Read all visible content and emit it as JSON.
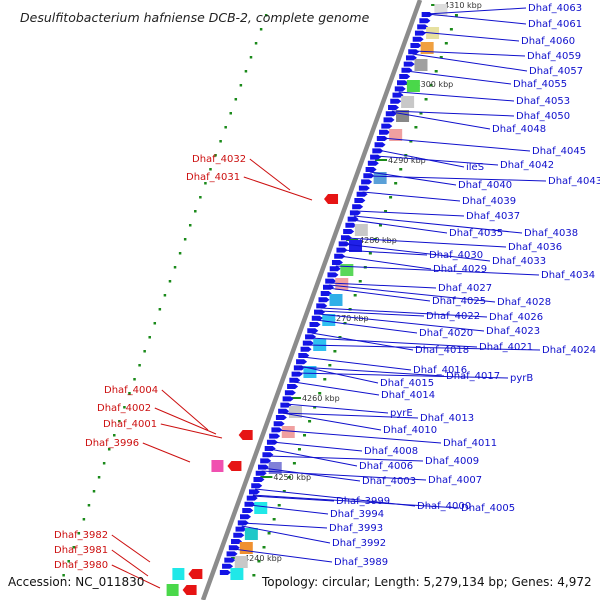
{
  "title": "Desulfitobacterium hafniense DCB-2, complete genome",
  "footer": {
    "accession": "Accession: NC_011830",
    "summary": "Topology: circular; Length: 5,279,134 bp; Genes: 4,972"
  },
  "colors": {
    "forward_label": "#1010cc",
    "reverse_label": "#cc1010",
    "backbone": "#8c8c8c",
    "tick": "#1a8a1a",
    "forward_gene": "#1414e6",
    "reverse_gene": "#e61414"
  },
  "kbp_markers": [
    "4310 kbp",
    "4300 kbp",
    "4290 kbp",
    "4280 kbp",
    "4270 kbp",
    "4260 kbp",
    "4250 kbp",
    "4240 kbp"
  ],
  "forward_genes": [
    "Dhaf_4063",
    "Dhaf_4061",
    "Dhaf_4060",
    "Dhaf_4059",
    "Dhaf_4057",
    "Dhaf_4055",
    "Dhaf_4053",
    "Dhaf_4050",
    "Dhaf_4048",
    "Dhaf_4045",
    "Dhaf_4042",
    "Dhaf_4043",
    "ileS",
    "Dhaf_4040",
    "Dhaf_4039",
    "Dhaf_4037",
    "Dhaf_4038",
    "Dhaf_4035",
    "Dhaf_4036",
    "Dhaf_4030",
    "Dhaf_4033",
    "Dhaf_4029",
    "Dhaf_4034",
    "Dhaf_4027",
    "Dhaf_4028",
    "Dhaf_4025",
    "Dhaf_4026",
    "Dhaf_4022",
    "Dhaf_4023",
    "Dhaf_4020",
    "Dhaf_4021",
    "Dhaf_4024",
    "Dhaf_4018",
    "Dhaf_4016",
    "Dhaf_4017",
    "pyrB",
    "Dhaf_4015",
    "Dhaf_4014",
    "pyrE",
    "Dhaf_4013",
    "Dhaf_4010",
    "Dhaf_4011",
    "Dhaf_4008",
    "Dhaf_4009",
    "Dhaf_4006",
    "Dhaf_4003",
    "Dhaf_4007",
    "Dhaf_3999",
    "Dhaf_4000",
    "Dhaf_4005",
    "Dhaf_3994",
    "Dhaf_3993",
    "Dhaf_3992",
    "Dhaf_3989"
  ],
  "reverse_genes": [
    "Dhaf_4032",
    "Dhaf_4031",
    "Dhaf_4004",
    "Dhaf_4002",
    "Dhaf_4001",
    "Dhaf_3996",
    "Dhaf_3982",
    "Dhaf_3981",
    "Dhaf_3980"
  ]
}
